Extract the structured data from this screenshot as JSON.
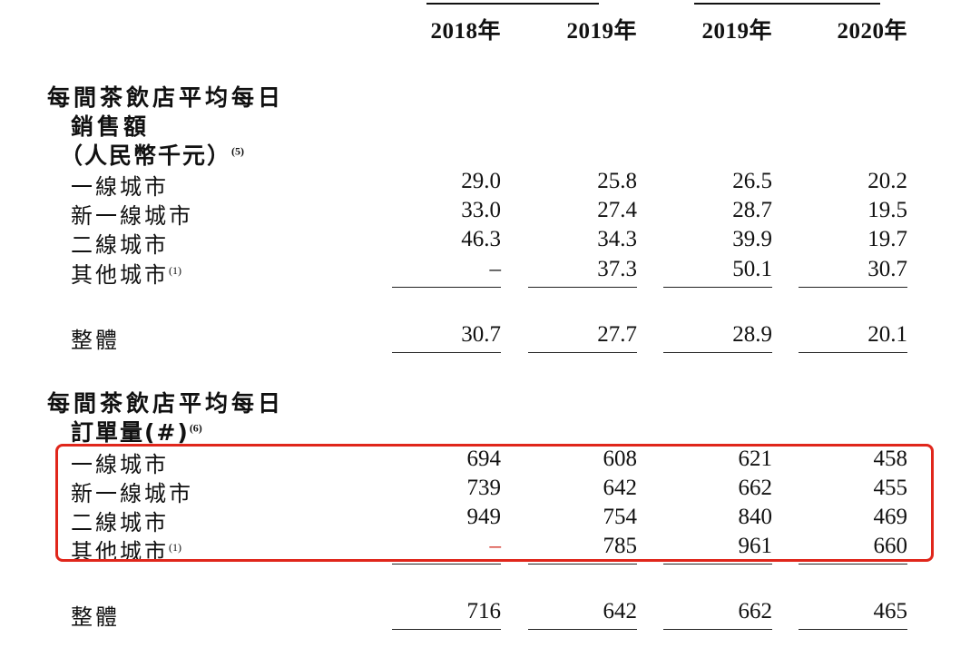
{
  "years": [
    "2018年",
    "2019年",
    "2019年",
    "2020年"
  ],
  "section1": {
    "title": "每間茶飲店平均每日",
    "sub1": "銷售額",
    "sub2": "（人民幣千元）",
    "sub2_note": "(5)",
    "rows": [
      {
        "label": "一線城市",
        "note": "",
        "values": [
          "29.0",
          "25.8",
          "26.5",
          "20.2"
        ]
      },
      {
        "label": "新一線城市",
        "note": "",
        "values": [
          "33.0",
          "27.4",
          "28.7",
          "19.5"
        ]
      },
      {
        "label": "二線城市",
        "note": "",
        "values": [
          "46.3",
          "34.3",
          "39.9",
          "19.7"
        ]
      },
      {
        "label": "其他城市",
        "note": "(1)",
        "values": [
          "–",
          "37.3",
          "50.1",
          "30.7"
        ]
      }
    ],
    "total": {
      "label": "整體",
      "values": [
        "30.7",
        "27.7",
        "28.9",
        "20.1"
      ]
    }
  },
  "section2": {
    "title": "每間茶飲店平均每日",
    "sub1": "訂單量(#)",
    "sub1_note": "(6)",
    "rows": [
      {
        "label": "一線城市",
        "note": "",
        "values": [
          "694",
          "608",
          "621",
          "458"
        ]
      },
      {
        "label": "新一線城市",
        "note": "",
        "values": [
          "739",
          "642",
          "662",
          "455"
        ]
      },
      {
        "label": "二線城市",
        "note": "",
        "values": [
          "949",
          "754",
          "840",
          "469"
        ]
      },
      {
        "label": "其他城市",
        "note": "(1)",
        "values": [
          "–",
          "785",
          "961",
          "660"
        ]
      }
    ],
    "total": {
      "label": "整體",
      "values": [
        "716",
        "642",
        "662",
        "465"
      ]
    }
  },
  "colors": {
    "highlight_box": "#e0261b",
    "text": "#111111"
  }
}
